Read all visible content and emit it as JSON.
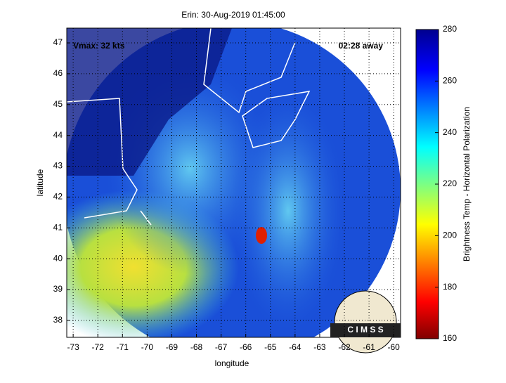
{
  "chart_data": {
    "type": "map",
    "title": "Erin: 30-Aug-2019 01:45:00",
    "annotations": [
      "Vmax: 32 kts",
      "02:28 away"
    ],
    "xlabel": "longitude",
    "ylabel": "latitude",
    "xlim": [
      -73.26,
      -59.72
    ],
    "xticks": [
      -73,
      -72,
      -71,
      -70,
      -69,
      -68,
      -67,
      -66,
      -65,
      -64,
      -63,
      -62,
      -61,
      -60
    ],
    "ylim": [
      37.45,
      47.48
    ],
    "yticks": [
      38,
      39,
      40,
      41,
      42,
      43,
      44,
      45,
      46,
      47
    ],
    "grid": true,
    "colorbar": {
      "label": "Brightness Temp - Horizontal Polarization",
      "lim": [
        160,
        280
      ],
      "ticks": [
        160,
        180,
        200,
        220,
        240,
        260,
        280
      ]
    },
    "logo_text": "C I M S S"
  }
}
